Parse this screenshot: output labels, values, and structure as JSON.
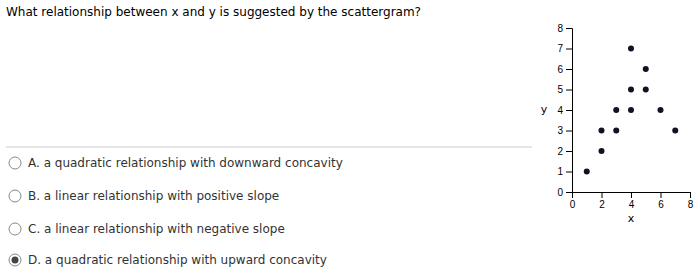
{
  "chart_data": {
    "type": "scatter",
    "title": "What relationship between x and y is suggested by the scattergram?",
    "x": [
      1,
      2,
      2,
      3,
      3,
      4,
      4,
      4,
      5,
      5,
      6,
      7
    ],
    "values": [
      1,
      2,
      3,
      3,
      4,
      4,
      5,
      7,
      5,
      6,
      4,
      3
    ],
    "color": "#111122",
    "xlabel": "x",
    "ylabel": "y",
    "xlim": [
      0,
      8
    ],
    "ylim": [
      0,
      8
    ],
    "xticks": [
      0,
      2,
      4,
      6,
      8
    ],
    "yticks": [
      0,
      1,
      2,
      3,
      4,
      5,
      6,
      7,
      8
    ],
    "annotations": [
      {
        "text": "A.  a quadratic relationship with downward concavity",
        "selected": false
      },
      {
        "text": "B.  a linear relationship with positive slope",
        "selected": false
      },
      {
        "text": "C.  a linear relationship with negative slope",
        "selected": false
      },
      {
        "text": "D.  a quadratic relationship with upward concavity",
        "selected": true
      }
    ]
  }
}
